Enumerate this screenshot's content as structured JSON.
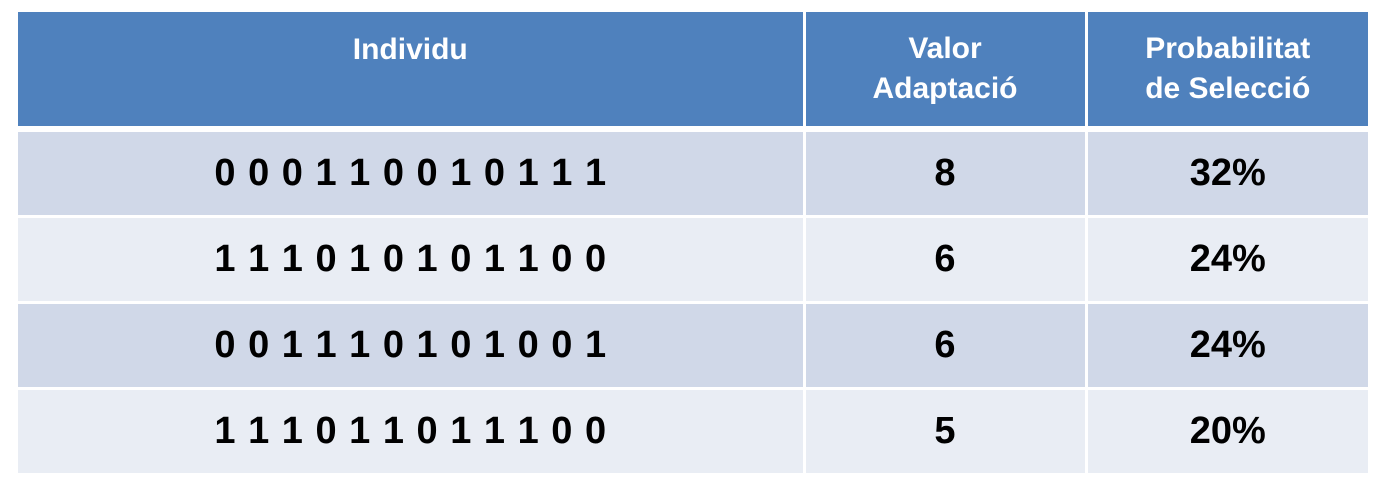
{
  "table": {
    "headers": {
      "individu": "Individu",
      "valor_line1": "Valor",
      "valor_line2": "Adaptació",
      "prob_line1": "Probabilitat",
      "prob_line2": "de Selecció"
    },
    "rows": [
      {
        "individu": "0 0 0 1 1 0 0 1 0 1 1 1",
        "valor": "8",
        "probabilitat": "32%"
      },
      {
        "individu": "1 1 1 0 1 0 1 0 1 1 0 0",
        "valor": "6",
        "probabilitat": "24%"
      },
      {
        "individu": "0 0 1 1 1 0 1 0 1 0 0 1",
        "valor": "6",
        "probabilitat": "24%"
      },
      {
        "individu": "1 1 1 0 1 1 0 1 1 1 0 0",
        "valor": "5",
        "probabilitat": "20%"
      }
    ]
  },
  "colors": {
    "header_bg": "#4f81bd",
    "row_dark": "#d0d8e8",
    "row_light": "#e9edf4"
  }
}
